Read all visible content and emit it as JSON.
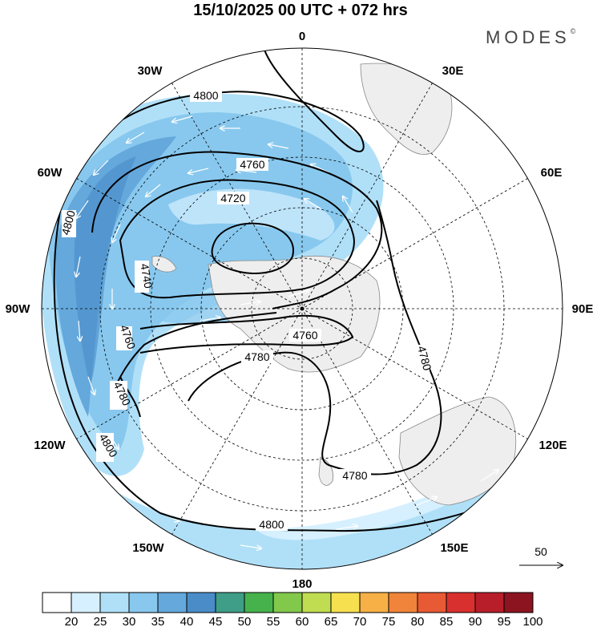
{
  "title": "15/10/2025  00 UTC  + 072 hrs",
  "brand": "MODES",
  "brand_mark": "©",
  "lon_labels": {
    "deg0": "0",
    "e30": "30E",
    "e60": "60E",
    "e90": "90E",
    "e120": "120E",
    "e150": "150E",
    "deg180": "180",
    "w150": "150W",
    "w120": "120W",
    "w90": "90W",
    "w60": "60W",
    "w30": "30W"
  },
  "contour_labels": {
    "c4800_top": "4800",
    "c4800_left": "4800",
    "c4800_bottom": "4800",
    "c4760_top": "4760",
    "c4720": "4720",
    "c4740": "4740",
    "c4760_left": "4760",
    "c4760_center": "4760",
    "c4780_left": "4780",
    "c4780_center": "4780",
    "c4780_right": "4780",
    "c4780_bottom": "4780"
  },
  "reference_vector": "50",
  "colorbar": {
    "colors": [
      "#ffffff",
      "#d6f0ff",
      "#b0e0f8",
      "#88c8ee",
      "#64a8dc",
      "#4a8cc8",
      "#3e9e88",
      "#46b24c",
      "#82c84a",
      "#c0dc50",
      "#f6e050",
      "#f6b046",
      "#f0843a",
      "#e85a34",
      "#d8302e",
      "#b81e2a",
      "#8c1420"
    ],
    "ticks": [
      "20",
      "25",
      "30",
      "35",
      "40",
      "45",
      "50",
      "55",
      "60",
      "65",
      "70",
      "75",
      "80",
      "85",
      "90",
      "95",
      "100"
    ]
  }
}
